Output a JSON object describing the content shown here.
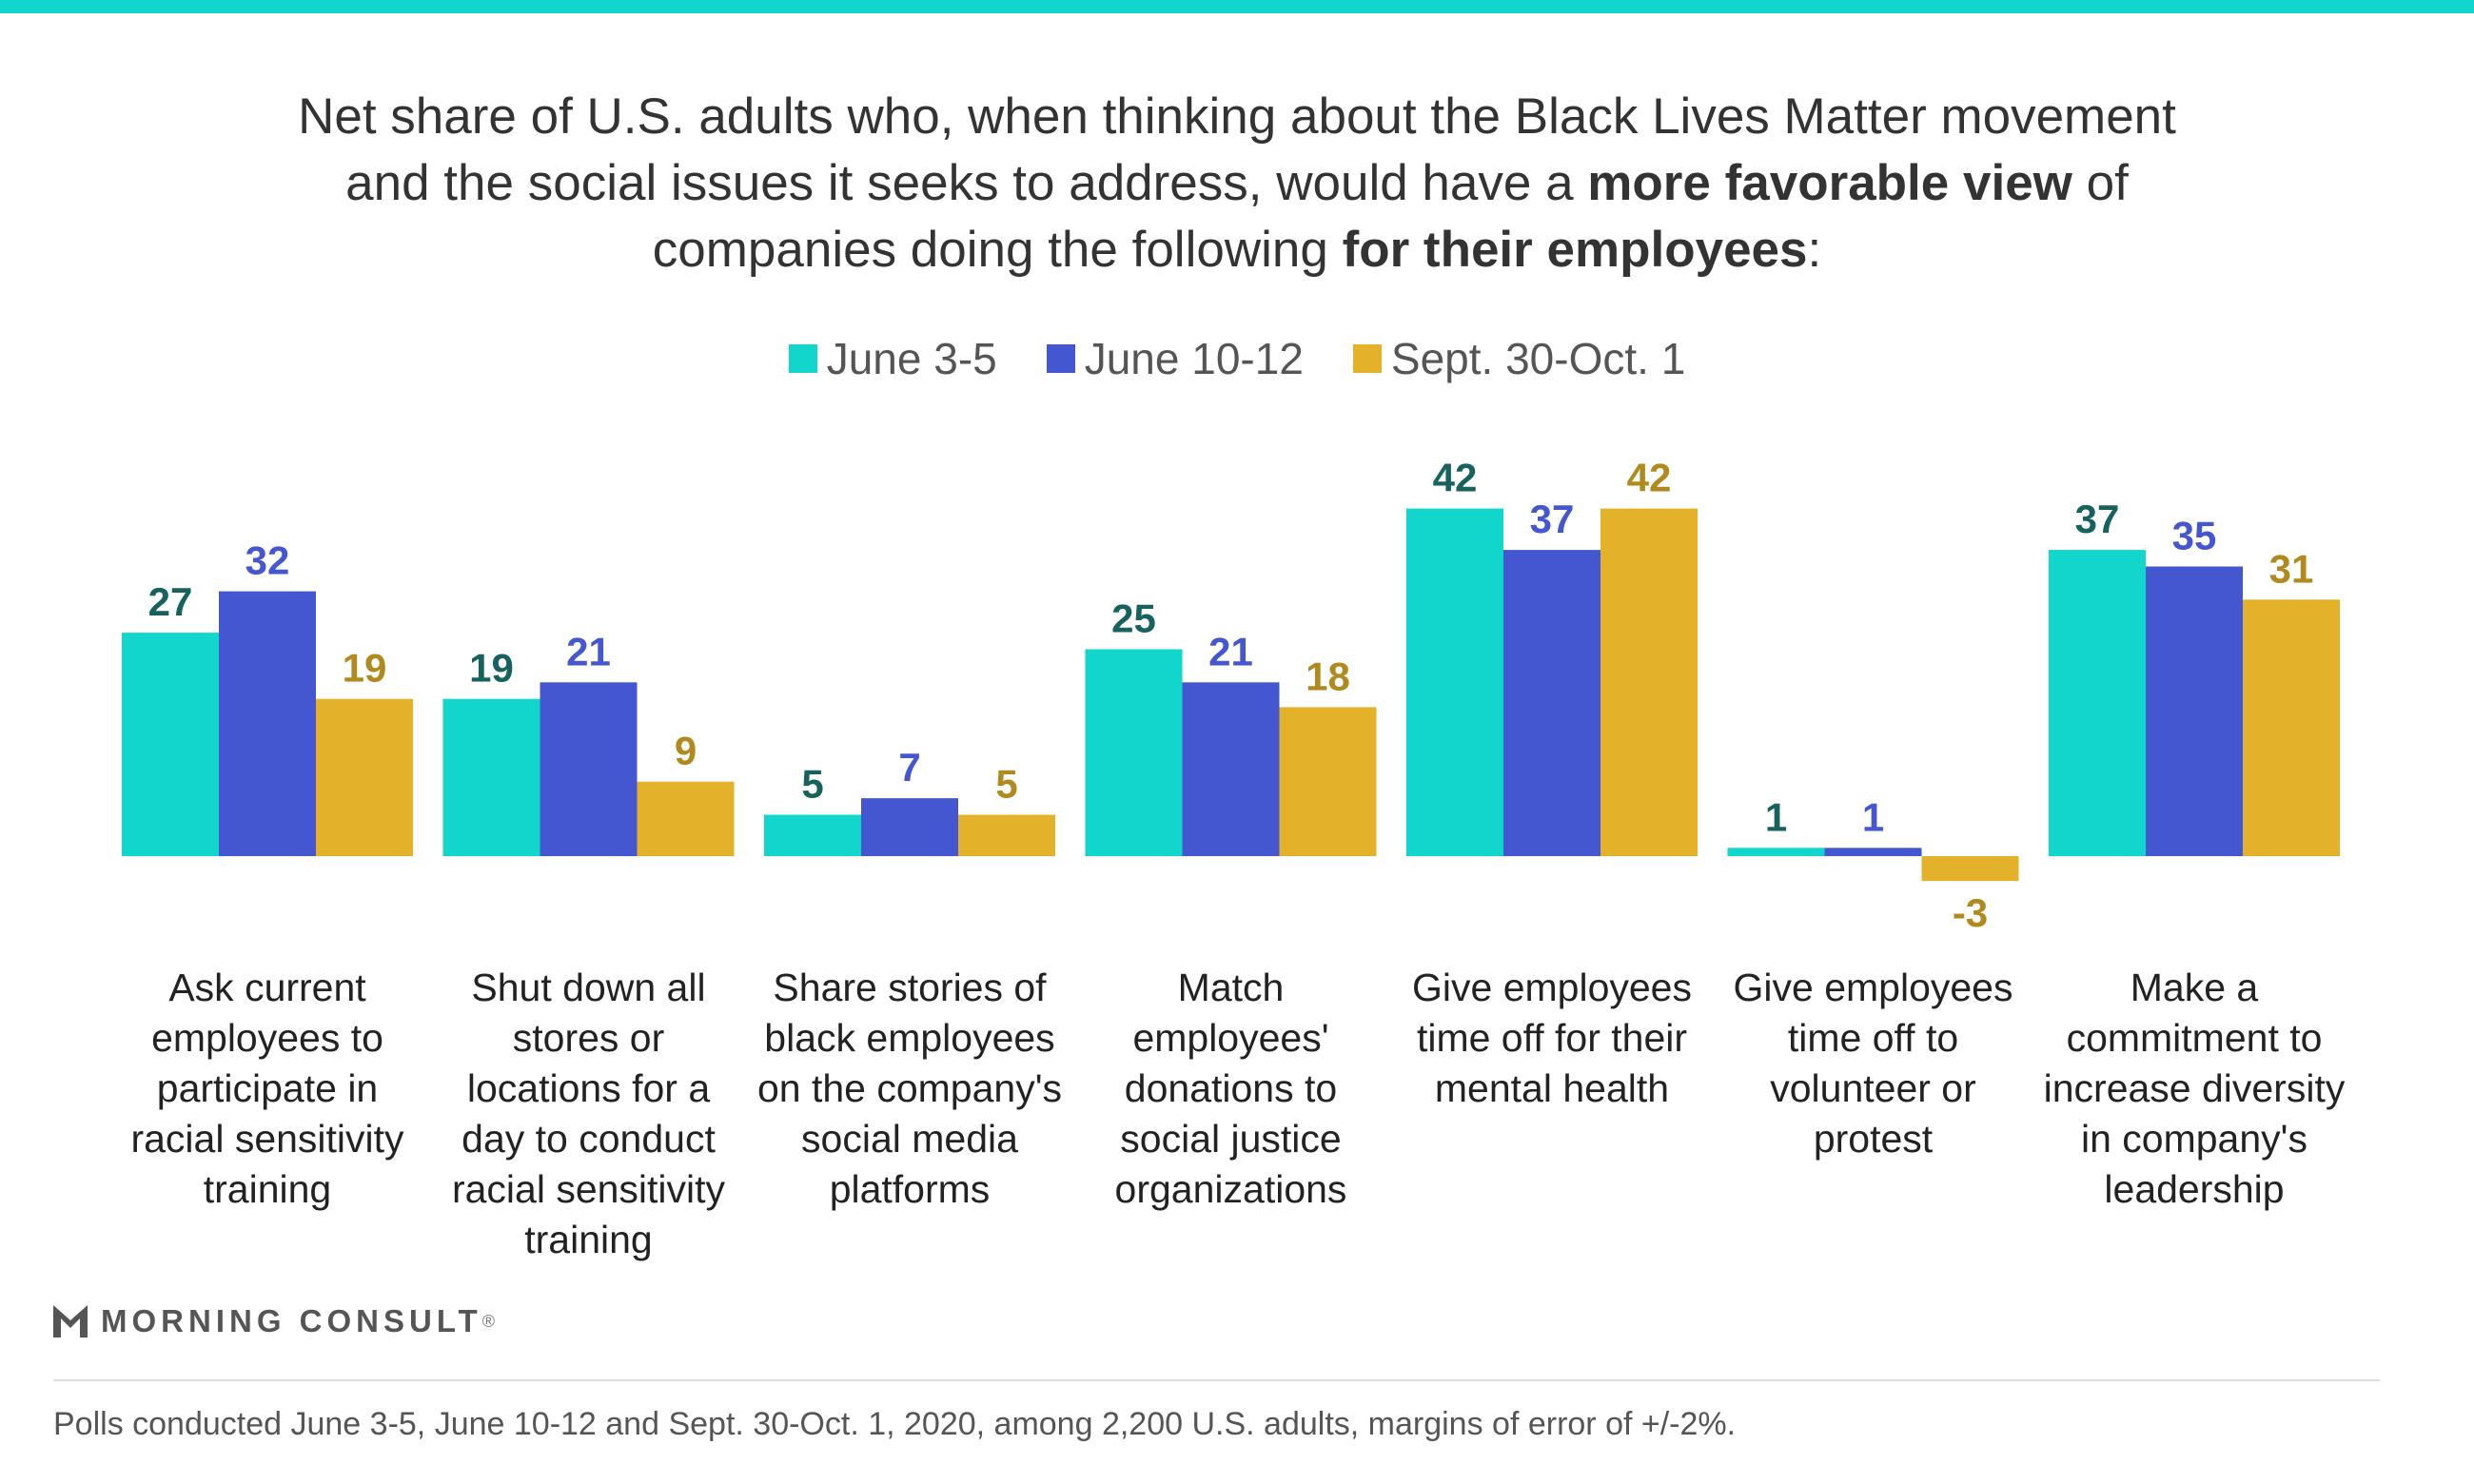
{
  "title": {
    "part1": "Net share of U.S. adults who, when thinking about the Black Lives Matter movement  and the social issues it seeks to address, would have a ",
    "bold1": "more favorable view",
    "part2": " of companies doing the following ",
    "bold2": "for their employees",
    "part3": ":"
  },
  "brand": "MORNING CONSULT",
  "brand_mark": "®",
  "footnote": "Polls conducted June 3-5, June 10-12 and Sept. 30-Oct. 1, 2020, among 2,200 U.S. adults, margins of error of +/-2%.",
  "chart_data": {
    "type": "bar",
    "categories": [
      "Ask current employees to participate in racial sensitivity training",
      "Shut down all stores or locations for a day to conduct racial sensitivity training",
      "Share stories of black employees on the company's social media platforms",
      "Match employees' donations to social justice organizations",
      "Give employees time off for their mental health",
      "Give employees time off to volunteer or protest",
      "Make a commitment to increase diversity in company's leadership"
    ],
    "category_lines": [
      [
        "Ask current",
        "employees to",
        "participate in",
        "racial sensitivity",
        "training"
      ],
      [
        "Shut down all",
        "stores or",
        "locations for a",
        "day to conduct",
        "racial sensitivity",
        "training"
      ],
      [
        "Share stories of",
        "black employees",
        "on the company's",
        "social media",
        "platforms"
      ],
      [
        "Match",
        "employees'",
        "donations to",
        "social justice",
        "organizations"
      ],
      [
        "Give employees",
        "time off for their",
        "mental health"
      ],
      [
        "Give employees",
        "time off to",
        "volunteer or",
        "protest"
      ],
      [
        "Make a",
        "commitment to",
        "increase diversity",
        "in company's",
        "leadership"
      ]
    ],
    "series": [
      {
        "name": "June 3-5",
        "color": "#12d6cc",
        "label_color": "#17615f",
        "values": [
          27,
          19,
          5,
          25,
          42,
          1,
          37
        ]
      },
      {
        "name": "June 10-12",
        "color": "#4456d0",
        "label_color": "#4456d0",
        "values": [
          32,
          21,
          7,
          21,
          37,
          1,
          35
        ]
      },
      {
        "name": "Sept. 30-Oct. 1",
        "color": "#e3b12a",
        "label_color": "#b08a1e",
        "values": [
          19,
          9,
          5,
          18,
          42,
          -3,
          31
        ]
      }
    ],
    "legend": "top-center",
    "grid": false
  }
}
